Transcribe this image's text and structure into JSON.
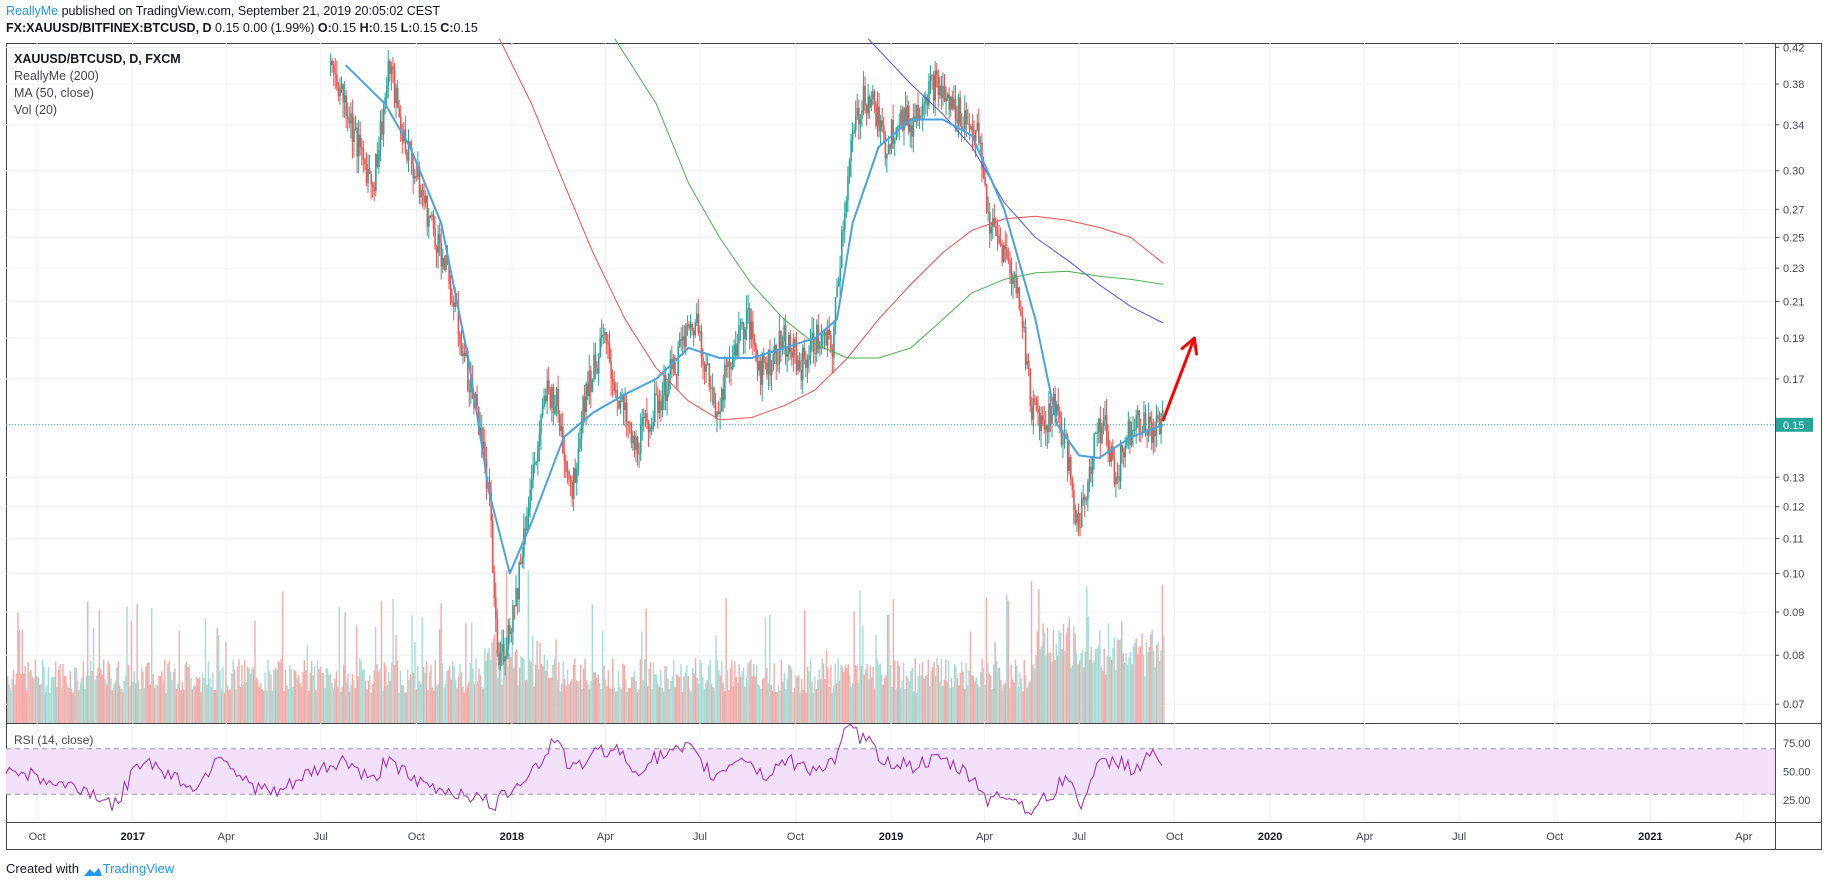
{
  "header": {
    "author": "ReallyMe",
    "published_text": " published on TradingView.com, September 21, 2019 20:05:02 CEST",
    "symbol_line": "FX:XAUUSD/BITFINEX:BTCUSD, D",
    "values_text": "0.15 0.00 (1.99%)",
    "o_label": "O:",
    "o_val": "0.15",
    "h_label": "H:",
    "h_val": "0.15",
    "l_label": "L:",
    "l_val": "0.15",
    "c_label": "C:",
    "c_val": "0.15"
  },
  "legend": {
    "symbol": "XAUUSD/BTCUSD, D, FXCM",
    "indicator_1": "ReallyMe (200)",
    "indicator_2": "MA (50, close)",
    "indicator_3": "Vol (20)"
  },
  "rsi": {
    "label": "RSI (14, close)"
  },
  "footer": {
    "created_with": "Created with",
    "brand": "TradingView"
  },
  "colors": {
    "up": "#26a69a",
    "down": "#ef5350",
    "ma50": "#4aa3df",
    "red_ma": "#f0514d",
    "green_ma": "#4caf50",
    "blue_ma": "#4e52e0",
    "rsi_line": "#9c27b0",
    "rsi_band": "#f3e0fb",
    "price_line": "#26a69a",
    "arrow": "#ff0000"
  },
  "chart_data": {
    "type": "candlestick",
    "price_axis": {
      "scale": "log",
      "ticks": [
        "0.42",
        "0.38",
        "0.34",
        "0.30",
        "0.27",
        "0.25",
        "0.23",
        "0.21",
        "0.19",
        "0.17",
        "0.15",
        "0.13",
        "0.12",
        "0.11",
        "0.10",
        "0.09",
        "0.08",
        "0.07"
      ],
      "current_price": "0.15"
    },
    "time_axis": {
      "ticks": [
        "Oct",
        "2017",
        "Apr",
        "Jul",
        "Oct",
        "2018",
        "Apr",
        "Jul",
        "Oct",
        "2019",
        "Apr",
        "Jul",
        "Oct",
        "2020",
        "Apr",
        "Jul",
        "Oct",
        "2021",
        "Apr"
      ],
      "year_ticks": [
        "2017",
        "2018",
        "2019",
        "2020",
        "2021"
      ],
      "range": [
        "2016-09",
        "2021-05"
      ]
    },
    "price_path": [
      [
        "2017-07-10",
        0.4
      ],
      [
        "2017-07-25",
        0.36
      ],
      [
        "2017-08-05",
        0.32
      ],
      [
        "2017-08-20",
        0.29
      ],
      [
        "2017-09-05",
        0.4
      ],
      [
        "2017-09-15",
        0.34
      ],
      [
        "2017-09-25",
        0.31
      ],
      [
        "2017-10-10",
        0.27
      ],
      [
        "2017-10-25",
        0.24
      ],
      [
        "2017-11-05",
        0.21
      ],
      [
        "2017-11-20",
        0.17
      ],
      [
        "2017-12-01",
        0.15
      ],
      [
        "2017-12-10",
        0.12
      ],
      [
        "2017-12-18",
        0.078
      ],
      [
        "2017-12-28",
        0.085
      ],
      [
        "2018-01-05",
        0.095
      ],
      [
        "2018-01-15",
        0.12
      ],
      [
        "2018-01-25",
        0.14
      ],
      [
        "2018-02-03",
        0.165
      ],
      [
        "2018-02-12",
        0.16
      ],
      [
        "2018-02-20",
        0.14
      ],
      [
        "2018-02-28",
        0.125
      ],
      [
        "2018-03-10",
        0.16
      ],
      [
        "2018-03-20",
        0.175
      ],
      [
        "2018-03-30",
        0.19
      ],
      [
        "2018-04-08",
        0.17
      ],
      [
        "2018-04-18",
        0.155
      ],
      [
        "2018-04-28",
        0.14
      ],
      [
        "2018-05-10",
        0.15
      ],
      [
        "2018-05-22",
        0.16
      ],
      [
        "2018-06-05",
        0.175
      ],
      [
        "2018-06-15",
        0.19
      ],
      [
        "2018-06-28",
        0.2
      ],
      [
        "2018-07-05",
        0.18
      ],
      [
        "2018-07-15",
        0.155
      ],
      [
        "2018-07-25",
        0.17
      ],
      [
        "2018-08-05",
        0.19
      ],
      [
        "2018-08-15",
        0.2
      ],
      [
        "2018-08-28",
        0.175
      ],
      [
        "2018-09-08",
        0.18
      ],
      [
        "2018-09-20",
        0.19
      ],
      [
        "2018-10-05",
        0.175
      ],
      [
        "2018-10-20",
        0.19
      ],
      [
        "2018-11-05",
        0.185
      ],
      [
        "2018-11-15",
        0.26
      ],
      [
        "2018-11-25",
        0.33
      ],
      [
        "2018-12-05",
        0.37
      ],
      [
        "2018-12-15",
        0.36
      ],
      [
        "2018-12-25",
        0.32
      ],
      [
        "2019-01-08",
        0.35
      ],
      [
        "2019-01-20",
        0.34
      ],
      [
        "2019-02-01",
        0.37
      ],
      [
        "2019-02-12",
        0.38
      ],
      [
        "2019-02-25",
        0.36
      ],
      [
        "2019-03-10",
        0.35
      ],
      [
        "2019-03-25",
        0.33
      ],
      [
        "2019-04-05",
        0.26
      ],
      [
        "2019-04-20",
        0.24
      ],
      [
        "2019-05-05",
        0.21
      ],
      [
        "2019-05-15",
        0.16
      ],
      [
        "2019-05-28",
        0.15
      ],
      [
        "2019-06-08",
        0.16
      ],
      [
        "2019-06-18",
        0.14
      ],
      [
        "2019-06-28",
        0.115
      ],
      [
        "2019-07-05",
        0.12
      ],
      [
        "2019-07-15",
        0.145
      ],
      [
        "2019-07-25",
        0.15
      ],
      [
        "2019-08-05",
        0.13
      ],
      [
        "2019-08-15",
        0.145
      ],
      [
        "2019-08-25",
        0.155
      ],
      [
        "2019-09-05",
        0.148
      ],
      [
        "2019-09-20",
        0.15
      ]
    ],
    "ma50_path": [
      [
        "2017-07-25",
        0.4
      ],
      [
        "2017-09-01",
        0.36
      ],
      [
        "2017-09-25",
        0.32
      ],
      [
        "2017-10-25",
        0.26
      ],
      [
        "2017-11-20",
        0.18
      ],
      [
        "2017-12-10",
        0.125
      ],
      [
        "2017-12-30",
        0.1
      ],
      [
        "2018-01-20",
        0.115
      ],
      [
        "2018-02-20",
        0.145
      ],
      [
        "2018-03-20",
        0.155
      ],
      [
        "2018-04-20",
        0.163
      ],
      [
        "2018-05-20",
        0.17
      ],
      [
        "2018-06-20",
        0.185
      ],
      [
        "2018-07-20",
        0.18
      ],
      [
        "2018-08-20",
        0.18
      ],
      [
        "2018-09-20",
        0.185
      ],
      [
        "2018-10-20",
        0.19
      ],
      [
        "2018-11-10",
        0.2
      ],
      [
        "2018-11-25",
        0.26
      ],
      [
        "2018-12-20",
        0.32
      ],
      [
        "2019-01-20",
        0.345
      ],
      [
        "2019-02-20",
        0.345
      ],
      [
        "2019-03-20",
        0.33
      ],
      [
        "2019-04-20",
        0.27
      ],
      [
        "2019-05-20",
        0.2
      ],
      [
        "2019-06-10",
        0.15
      ],
      [
        "2019-07-01",
        0.138
      ],
      [
        "2019-07-20",
        0.137
      ],
      [
        "2019-08-20",
        0.145
      ],
      [
        "2019-09-20",
        0.15
      ]
    ],
    "red_ma_path": [
      [
        "2017-12-20",
        0.43
      ],
      [
        "2018-01-20",
        0.36
      ],
      [
        "2018-02-20",
        0.29
      ],
      [
        "2018-03-20",
        0.24
      ],
      [
        "2018-04-20",
        0.2
      ],
      [
        "2018-05-20",
        0.175
      ],
      [
        "2018-06-20",
        0.16
      ],
      [
        "2018-07-20",
        0.152
      ],
      [
        "2018-08-20",
        0.153
      ],
      [
        "2018-09-20",
        0.158
      ],
      [
        "2018-10-20",
        0.165
      ],
      [
        "2018-11-20",
        0.18
      ],
      [
        "2018-12-20",
        0.2
      ],
      [
        "2019-01-20",
        0.22
      ],
      [
        "2019-02-20",
        0.24
      ],
      [
        "2019-03-20",
        0.255
      ],
      [
        "2019-04-20",
        0.263
      ],
      [
        "2019-05-20",
        0.265
      ],
      [
        "2019-06-20",
        0.262
      ],
      [
        "2019-07-20",
        0.257
      ],
      [
        "2019-08-20",
        0.25
      ],
      [
        "2019-09-20",
        0.233
      ]
    ],
    "green_ma_path": [
      [
        "2018-04-10",
        0.43
      ],
      [
        "2018-05-20",
        0.36
      ],
      [
        "2018-06-20",
        0.29
      ],
      [
        "2018-07-20",
        0.25
      ],
      [
        "2018-08-20",
        0.22
      ],
      [
        "2018-09-20",
        0.2
      ],
      [
        "2018-10-20",
        0.187
      ],
      [
        "2018-11-20",
        0.18
      ],
      [
        "2018-12-20",
        0.18
      ],
      [
        "2019-01-20",
        0.185
      ],
      [
        "2019-02-20",
        0.2
      ],
      [
        "2019-03-20",
        0.215
      ],
      [
        "2019-04-20",
        0.223
      ],
      [
        "2019-05-20",
        0.227
      ],
      [
        "2019-06-20",
        0.228
      ],
      [
        "2019-07-20",
        0.225
      ],
      [
        "2019-08-20",
        0.223
      ],
      [
        "2019-09-20",
        0.22
      ]
    ],
    "blue_ma_path": [
      [
        "2018-12-10",
        0.43
      ],
      [
        "2019-01-20",
        0.38
      ],
      [
        "2019-02-20",
        0.35
      ],
      [
        "2019-03-20",
        0.32
      ],
      [
        "2019-04-20",
        0.275
      ],
      [
        "2019-05-20",
        0.25
      ],
      [
        "2019-06-20",
        0.235
      ],
      [
        "2019-07-20",
        0.22
      ],
      [
        "2019-08-20",
        0.207
      ],
      [
        "2019-09-20",
        0.198
      ]
    ],
    "arrow": {
      "from": [
        "2019-09-20",
        0.152
      ],
      "to": [
        "2019-10-20",
        0.19
      ]
    },
    "rsi_axis": {
      "ticks": [
        "75.00",
        "50.00",
        "25.00"
      ],
      "upper": 70,
      "lower": 30
    },
    "rsi_path": [
      [
        "2016-09-01",
        55
      ],
      [
        "2016-10-15",
        40
      ],
      [
        "2016-11-15",
        35
      ],
      [
        "2016-12-15",
        20
      ],
      [
        "2017-01-10",
        62
      ],
      [
        "2017-02-10",
        45
      ],
      [
        "2017-03-05",
        35
      ],
      [
        "2017-03-25",
        68
      ],
      [
        "2017-04-20",
        40
      ],
      [
        "2017-05-20",
        30
      ],
      [
        "2017-06-20",
        48
      ],
      [
        "2017-07-25",
        60
      ],
      [
        "2017-08-20",
        40
      ],
      [
        "2017-09-05",
        65
      ],
      [
        "2017-09-25",
        42
      ],
      [
        "2017-10-20",
        35
      ],
      [
        "2017-11-20",
        30
      ],
      [
        "2017-12-15",
        20
      ],
      [
        "2018-01-05",
        40
      ],
      [
        "2018-02-01",
        60
      ],
      [
        "2018-02-10",
        82
      ],
      [
        "2018-02-28",
        50
      ],
      [
        "2018-03-20",
        65
      ],
      [
        "2018-04-10",
        72
      ],
      [
        "2018-04-28",
        50
      ],
      [
        "2018-05-20",
        62
      ],
      [
        "2018-06-20",
        70
      ],
      [
        "2018-07-15",
        45
      ],
      [
        "2018-08-10",
        65
      ],
      [
        "2018-09-01",
        45
      ],
      [
        "2018-09-20",
        60
      ],
      [
        "2018-10-20",
        52
      ],
      [
        "2018-11-10",
        60
      ],
      [
        "2018-11-20",
        90
      ],
      [
        "2018-12-10",
        75
      ],
      [
        "2018-12-25",
        60
      ],
      [
        "2019-01-20",
        55
      ],
      [
        "2019-02-20",
        60
      ],
      [
        "2019-03-20",
        45
      ],
      [
        "2019-04-05",
        25
      ],
      [
        "2019-04-25",
        30
      ],
      [
        "2019-05-15",
        15
      ],
      [
        "2019-06-05",
        30
      ],
      [
        "2019-06-20",
        48
      ],
      [
        "2019-07-01",
        20
      ],
      [
        "2019-07-20",
        55
      ],
      [
        "2019-08-10",
        60
      ],
      [
        "2019-08-25",
        50
      ],
      [
        "2019-09-05",
        65
      ],
      [
        "2019-09-20",
        58
      ]
    ]
  }
}
